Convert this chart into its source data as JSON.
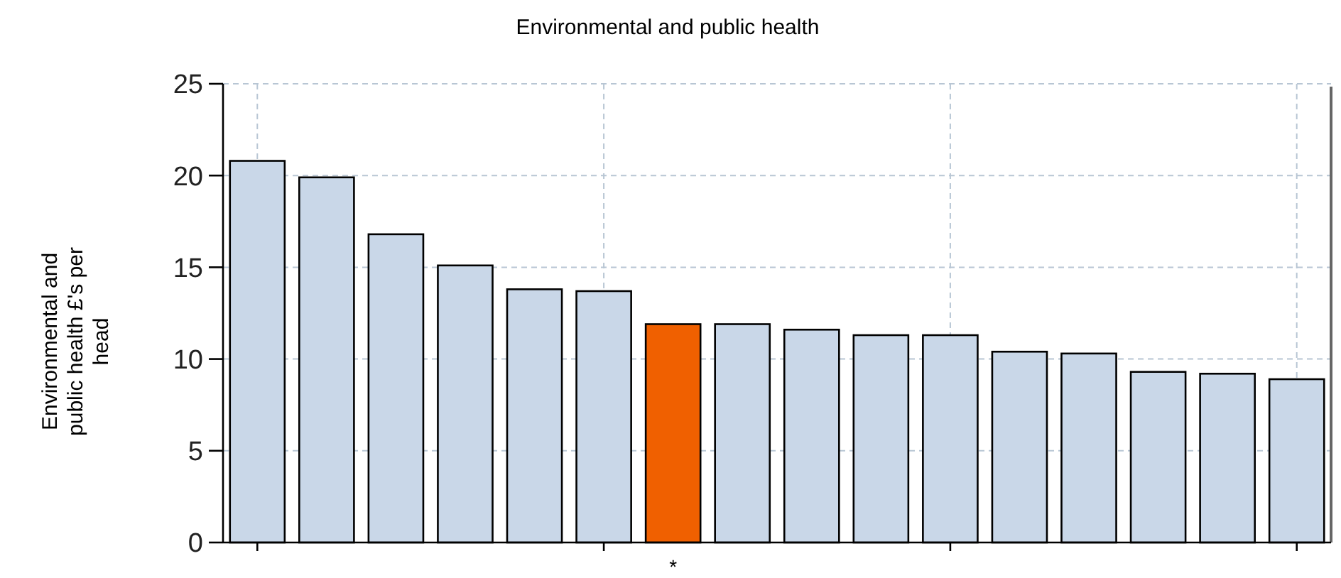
{
  "chart_data": {
    "type": "bar",
    "title": "Environmental and public health",
    "ylabel": "Environmental and public health £'s per head",
    "categories": [
      null,
      null,
      null,
      null,
      null,
      null,
      "*",
      null,
      null,
      null,
      null,
      null,
      null,
      null,
      null,
      null
    ],
    "values": [
      20.8,
      19.9,
      16.8,
      15.1,
      13.8,
      13.7,
      11.9,
      11.9,
      11.6,
      11.3,
      11.3,
      10.4,
      10.3,
      9.3,
      9.2,
      8.9
    ],
    "colors": [
      "#c9d7e8",
      "#c9d7e8",
      "#c9d7e8",
      "#c9d7e8",
      "#c9d7e8",
      "#c9d7e8",
      "#f06000",
      "#c9d7e8",
      "#c9d7e8",
      "#c9d7e8",
      "#c9d7e8",
      "#c9d7e8",
      "#c9d7e8",
      "#c9d7e8",
      "#c9d7e8",
      "#c9d7e8"
    ],
    "ylim": [
      0,
      25
    ],
    "yticks": [
      0,
      5,
      10,
      15,
      20,
      25
    ],
    "grid": true
  }
}
